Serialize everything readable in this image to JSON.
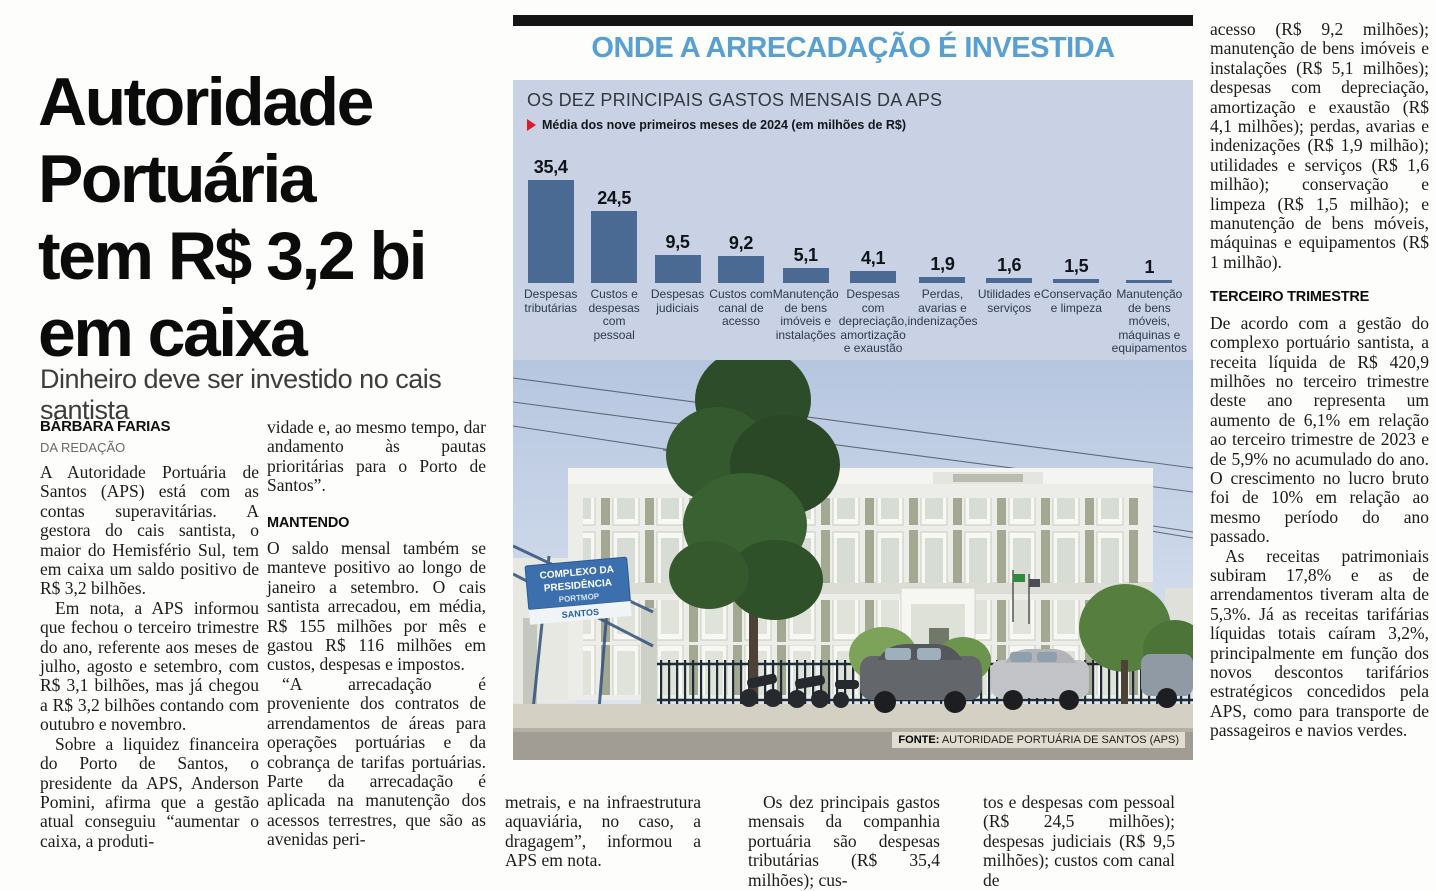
{
  "article": {
    "headline_lines": [
      "Autoridade",
      "Portuária",
      "tem R$ 3,2 bi",
      "em caixa"
    ],
    "subtitle": "Dinheiro deve ser investido no cais santista",
    "byline": "BÁRBARA FARIAS",
    "byline_role": "DA REDAÇÃO",
    "col1": [
      "A Autoridade Portuária de Santos (APS) está com as contas superavitárias. A gestora do cais santista, o maior do Hemisfério Sul, tem em caixa um saldo positivo de R$ 3,2 bilhões.",
      "Em nota, a APS informou que fechou o terceiro trimestre do ano, referente aos meses de julho, agosto e setembro, com R$ 3,1 bilhões, mas já chegou a R$ 3,2 bilhões contando com outubro e novembro.",
      "Sobre a liquidez financeira do Porto de Santos, o presidente da APS, Anderson Pomini, afirma que a gestão atual conseguiu “aumentar o caixa, a produti-"
    ],
    "col2_intro": "vidade e, ao mesmo tempo, dar andamento às pautas prioritárias para o Porto de Santos”.",
    "col2_heading": "MANTENDO",
    "col2": [
      "O saldo mensal também se manteve positivo ao longo de janeiro a setembro. O cais santista arrecadou, em média, R$ 155 milhões por mês e gastou R$ 116 milhões em custos, despesas e impostos.",
      "“A arrecadação é proveniente dos contratos de arrendamentos de áreas para operações portuárias e da cobrança de tarifas portuárias. Parte da arrecadação é aplicada na manutenção dos acessos terrestres, que são as avenidas peri-"
    ],
    "bottom_col1": "metrais, e na infraestrutura aquaviária, no caso, a dragagem”, informou a APS em nota.",
    "bottom_col2": "Os dez principais gastos mensais da companhia portuária são despesas tributárias (R$ 35,4 milhões); cus-",
    "bottom_col3": "tos e despesas com pessoal (R$ 24,5 milhões); despesas judiciais (R$ 9,5 milhões); custos com canal de",
    "right_p1": "acesso (R$ 9,2 milhões); manutenção de bens imóveis e instalações (R$ 5,1 milhões); despesas com depreciação, amortização e exaustão (R$ 4,1 milhões); perdas, avarias e indenizações (R$ 1,9 milhão); utilidades e serviços (R$ 1,6 milhão); conservação e limpeza (R$ 1,5 milhão); e manutenção de bens móveis, máquinas e equipamentos (R$ 1 milhão).",
    "right_heading": "TERCEIRO TRIMESTRE",
    "right_p2": "De acordo com a gestão do complexo portuário santista, a receita líquida de R$ 420,9 milhões no terceiro trimestre deste ano representa um aumento de 6,1% em relação ao terceiro trimestre de 2023 e de 5,9% no acumulado do ano. O crescimento no lucro bruto foi de 10% em relação ao mesmo período do ano passado.",
    "right_p3": "As receitas patrimoniais subiram 17,8% e as de arrendamentos tiveram alta de 5,3%. Já as receitas tarifárias líquidas totais caíram 3,2%, principalmente em função dos novos descontos tarifários estratégicos concedidos pela APS, como para transporte de passageiros e navios verdes."
  },
  "infographic": {
    "title": "ONDE A ARRECADAÇÃO É INVESTIDA",
    "accent_color": "#58a0d4"
  },
  "chart_data": {
    "type": "bar",
    "title": "OS DEZ PRINCIPAIS GASTOS MENSAIS DA APS",
    "subtitle": "Média dos nove primeiros meses de 2024 (em milhões de R$)",
    "unit": "milhões de R$",
    "categories": [
      "Despesas tributárias",
      "Custos e despesas com pessoal",
      "Despesas judiciais",
      "Custos com canal de acesso",
      "Manutenção de bens imóveis e instalações",
      "Despesas com depreciação, amortização e exaustão",
      "Perdas, avarias e indenizações",
      "Utilidades e serviços",
      "Conservação e limpeza",
      "Manutenção de bens móveis, máquinas e equipamentos"
    ],
    "values": [
      35.4,
      24.5,
      9.5,
      9.2,
      5.1,
      4.1,
      1.9,
      1.6,
      1.5,
      1
    ],
    "value_labels": [
      "35,4",
      "24,5",
      "9,5",
      "9,2",
      "5,1",
      "4,1",
      "1,9",
      "1,6",
      "1,5",
      "1"
    ],
    "ylim": [
      0,
      40
    ],
    "grid": false,
    "legend": "none",
    "bar_color": "#4a6a93",
    "panel_bg": "#c8d2e4",
    "marker_color": "#e0182d"
  },
  "photo": {
    "sign_line1": "COMPLEXO DA",
    "sign_line2": "PRESIDÊNCIA",
    "sign_line3": "PORTMOP",
    "sign_brand": "SANTOS",
    "source_label": "FONTE:",
    "source_text": " AUTORIDADE PORTUÁRIA DE SANTOS (APS)"
  }
}
